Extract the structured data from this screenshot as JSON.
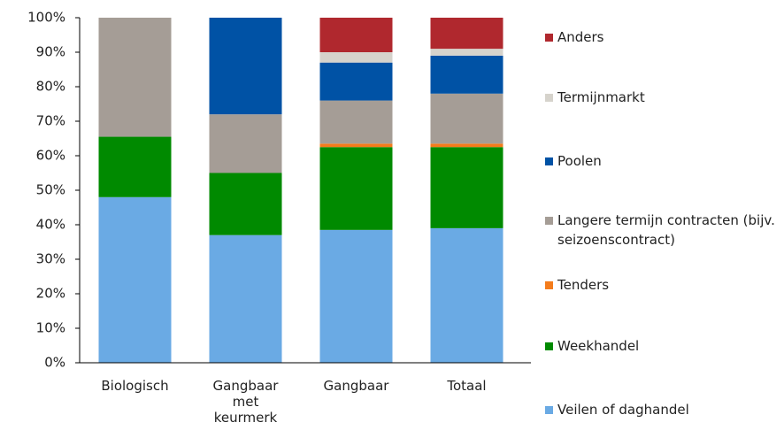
{
  "chart_data": {
    "type": "stacked_bar",
    "categories": [
      "Biologisch",
      "Gangbaar met keurmerk",
      "Gangbaar",
      "Totaal"
    ],
    "series": [
      {
        "name": "Veilen of daghandel",
        "color": "#6aaae4",
        "values": [
          48,
          37,
          38.5,
          39
        ]
      },
      {
        "name": "Weekhandel",
        "color": "#008a00",
        "values": [
          17.5,
          18,
          24,
          23.5
        ]
      },
      {
        "name": "Tenders",
        "color": "#f47c1c",
        "values": [
          0,
          0,
          1,
          1
        ]
      },
      {
        "name": "Langere termijn contracten (bijv. seizoenscontract)",
        "color": "#a59d96",
        "values": [
          34.5,
          17,
          12.5,
          14.5
        ]
      },
      {
        "name": "Poolen",
        "color": "#0052a5",
        "values": [
          0,
          28,
          11,
          11
        ]
      },
      {
        "name": "Termijnmarkt",
        "color": "#d6d3cc",
        "values": [
          0,
          0,
          3,
          2
        ]
      },
      {
        "name": "Anders",
        "color": "#b0282e",
        "values": [
          0,
          0,
          10,
          9
        ]
      }
    ],
    "ylim": [
      0,
      100
    ],
    "yticks": [
      {
        "value": 0,
        "label": "0%"
      },
      {
        "value": 10,
        "label": "10%"
      },
      {
        "value": 20,
        "label": "20%"
      },
      {
        "value": 30,
        "label": "30%"
      },
      {
        "value": 40,
        "label": "40%"
      },
      {
        "value": 50,
        "label": "50%"
      },
      {
        "value": 60,
        "label": "60%"
      },
      {
        "value": 70,
        "label": "70%"
      },
      {
        "value": 80,
        "label": "80%"
      },
      {
        "value": 90,
        "label": "90%"
      },
      {
        "value": 100,
        "label": "100%"
      }
    ],
    "legend": "right"
  }
}
